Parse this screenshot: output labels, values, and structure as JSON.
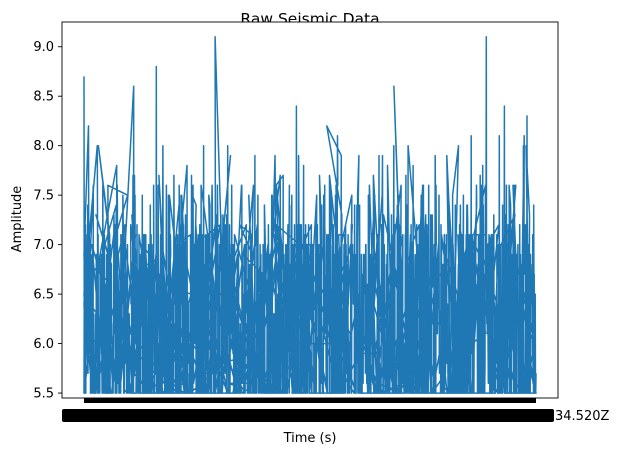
{
  "chart_data": {
    "type": "line",
    "title": "Raw Seismic Data",
    "xlabel": "Time (s)",
    "ylabel": "Amplitude",
    "ylim": [
      5.45,
      9.25
    ],
    "yticks": [
      5.5,
      6.0,
      6.5,
      7.0,
      7.5,
      8.0,
      8.5,
      9.0
    ],
    "ytick_labels": [
      "5.5",
      "6.0",
      "6.5",
      "7.0",
      "7.5",
      "8.0",
      "8.5",
      "9.0"
    ],
    "x_tick_label_visible": "34.520Z",
    "x_tick_note": "x tick labels are timestamp strings that overlap into a solid black band; only the trailing fragment is legible",
    "grid": false,
    "series": [
      {
        "name": "amplitude",
        "color": "#1f77b4",
        "baseline": 5.5,
        "points_count": 1800,
        "notable_peaks": [
          {
            "x_frac": 0.0,
            "value": 8.7
          },
          {
            "x_frac": 0.01,
            "value": 8.2
          },
          {
            "x_frac": 0.11,
            "value": 8.6
          },
          {
            "x_frac": 0.16,
            "value": 8.8
          },
          {
            "x_frac": 0.29,
            "value": 9.1
          },
          {
            "x_frac": 0.47,
            "value": 8.4
          },
          {
            "x_frac": 0.57,
            "value": 8.2
          },
          {
            "x_frac": 0.71,
            "value": 8.6
          },
          {
            "x_frac": 0.89,
            "value": 9.1
          },
          {
            "x_frac": 0.93,
            "value": 8.4
          },
          {
            "x_frac": 0.98,
            "value": 8.3
          }
        ]
      }
    ]
  }
}
